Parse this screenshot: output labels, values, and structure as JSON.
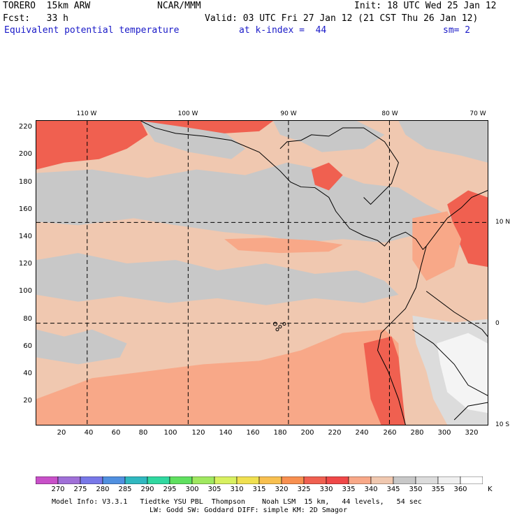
{
  "header": {
    "line1_left": "TORERO  15km ARW",
    "line1_mid": "NCAR/MMM",
    "line1_right": "Init: 18 UTC Wed 25 Jan 12",
    "line2_left": "Fcst:   33 h",
    "line2_right": "Valid: 03 UTC Fri 27 Jan 12 (21 CST Thu 26 Jan 12)",
    "line3_field": "Equivalent potential temperature",
    "line3_level": "at k-index =  44",
    "line3_sm": "sm= 2"
  },
  "map": {
    "lon_labels": [
      "110 W",
      "100 W",
      "90 W",
      "80 W",
      "70 W"
    ],
    "lat_labels": [
      "10 N",
      "0",
      "10 S"
    ],
    "y_ticks": [
      "220",
      "200",
      "180",
      "160",
      "140",
      "120",
      "100",
      "80",
      "60",
      "40",
      "20"
    ],
    "x_ticks": [
      "20",
      "40",
      "60",
      "80",
      "100",
      "120",
      "140",
      "160",
      "180",
      "200",
      "220",
      "240",
      "260",
      "280",
      "300",
      "320"
    ]
  },
  "colorbar": {
    "unit": "K",
    "labels": [
      "270",
      "275",
      "280",
      "285",
      "290",
      "295",
      "300",
      "305",
      "310",
      "315",
      "320",
      "325",
      "330",
      "335",
      "340",
      "345",
      "350",
      "355",
      "360"
    ],
    "colors": [
      "#c850c8",
      "#a070d8",
      "#7878e8",
      "#5090e0",
      "#30b8c0",
      "#30d8a0",
      "#60e060",
      "#a0e860",
      "#d8f060",
      "#f0e050",
      "#f8c050",
      "#f89050",
      "#f06050",
      "#f04848",
      "#f8a888",
      "#f0c8b0",
      "#c8c8c8",
      "#dcdcdc",
      "#f0f0f0",
      "#ffffff"
    ]
  },
  "footer": {
    "line1": "Model Info: V3.3.1   Tiedtke YSU PBL  Thompson    Noah LSM  15 km,   44 levels,   54 sec",
    "line2": "LW: Godd SW: Goddard DIFF: simple KM: 2D Smagor"
  }
}
